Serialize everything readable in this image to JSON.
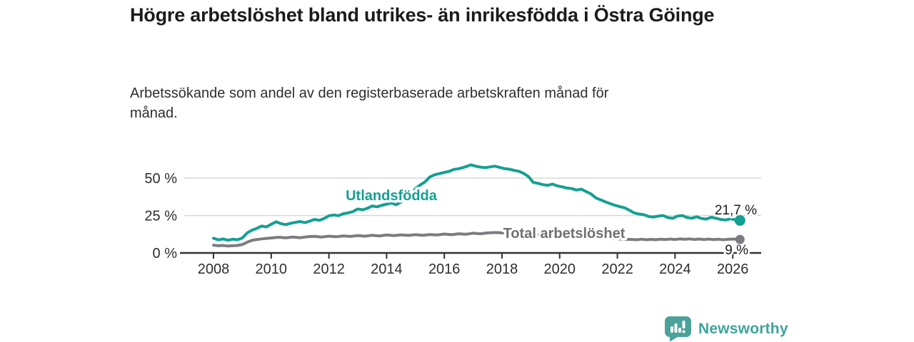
{
  "header": {
    "title": "Högre arbetslöshet bland utrikes- än inrikesfödda i Östra Göinge",
    "subtitle": "Arbetssökande som andel av den registerbaserade arbetskraften månad för månad."
  },
  "branding": {
    "logo_text": "Newsworthy",
    "logo_icon": "newsworthy-speech-bubble-bar-chart-icon",
    "brand_color": "#4aa29a"
  },
  "chart_data": {
    "type": "line",
    "title": "Högre arbetslöshet bland utrikes- än inrikesfödda i Östra Göinge",
    "subtitle": "Arbetssökande som andel av den registerbaserade arbetskraften månad för månad.",
    "grid": true,
    "legend_position": "inline-labels",
    "xlim": [
      2006.3,
      2027.3
    ],
    "ylim": [
      0,
      62
    ],
    "x_axis": {
      "ticks": [
        2008,
        2010,
        2012,
        2014,
        2016,
        2018,
        2020,
        2022,
        2024,
        2026
      ]
    },
    "y_axis": {
      "ticks": [
        {
          "value": 0,
          "label": "0 %"
        },
        {
          "value": 25,
          "label": "25 %"
        },
        {
          "value": 50,
          "label": "50 %"
        }
      ]
    },
    "series": [
      {
        "id": "utlandsfodda",
        "name": "Utlandsfödda",
        "color": "#14a091",
        "end_label": "21,7 %",
        "end_value": 21.7,
        "points": [
          [
            2008.0,
            9.8
          ],
          [
            2008.17,
            8.7
          ],
          [
            2008.33,
            9.4
          ],
          [
            2008.5,
            8.5
          ],
          [
            2008.67,
            9.2
          ],
          [
            2008.83,
            8.8
          ],
          [
            2009.0,
            10.0
          ],
          [
            2009.17,
            13.5
          ],
          [
            2009.33,
            15.2
          ],
          [
            2009.5,
            16.4
          ],
          [
            2009.67,
            18.0
          ],
          [
            2009.83,
            17.4
          ],
          [
            2010.0,
            19.2
          ],
          [
            2010.17,
            20.8
          ],
          [
            2010.33,
            19.6
          ],
          [
            2010.5,
            18.9
          ],
          [
            2010.67,
            19.8
          ],
          [
            2010.83,
            20.4
          ],
          [
            2011.0,
            21.0
          ],
          [
            2011.17,
            20.3
          ],
          [
            2011.33,
            21.2
          ],
          [
            2011.5,
            22.4
          ],
          [
            2011.67,
            21.8
          ],
          [
            2011.83,
            23.0
          ],
          [
            2012.0,
            24.8
          ],
          [
            2012.17,
            25.4
          ],
          [
            2012.33,
            24.9
          ],
          [
            2012.5,
            26.2
          ],
          [
            2012.67,
            26.8
          ],
          [
            2012.83,
            27.6
          ],
          [
            2013.0,
            29.4
          ],
          [
            2013.17,
            28.8
          ],
          [
            2013.33,
            29.8
          ],
          [
            2013.5,
            31.4
          ],
          [
            2013.67,
            30.8
          ],
          [
            2013.83,
            31.8
          ],
          [
            2014.0,
            32.6
          ],
          [
            2014.17,
            33.4
          ],
          [
            2014.33,
            32.2
          ],
          [
            2014.5,
            34.0
          ],
          [
            2014.67,
            36.5
          ],
          [
            2014.83,
            37.8
          ],
          [
            2015.0,
            43.0
          ],
          [
            2015.17,
            45.5
          ],
          [
            2015.33,
            47.5
          ],
          [
            2015.5,
            50.8
          ],
          [
            2015.67,
            52.3
          ],
          [
            2015.83,
            53.0
          ],
          [
            2016.0,
            53.8
          ],
          [
            2016.17,
            54.5
          ],
          [
            2016.33,
            55.8
          ],
          [
            2016.5,
            56.3
          ],
          [
            2016.67,
            57.2
          ],
          [
            2016.83,
            58.2
          ],
          [
            2016.92,
            58.9
          ],
          [
            2017.08,
            58.0
          ],
          [
            2017.25,
            57.4
          ],
          [
            2017.42,
            57.0
          ],
          [
            2017.58,
            57.5
          ],
          [
            2017.75,
            58.0
          ],
          [
            2017.92,
            57.2
          ],
          [
            2018.08,
            56.4
          ],
          [
            2018.25,
            56.0
          ],
          [
            2018.42,
            55.2
          ],
          [
            2018.58,
            54.6
          ],
          [
            2018.75,
            53.2
          ],
          [
            2018.92,
            51.0
          ],
          [
            2019.08,
            47.2
          ],
          [
            2019.25,
            46.5
          ],
          [
            2019.42,
            45.6
          ],
          [
            2019.58,
            45.2
          ],
          [
            2019.75,
            46.0
          ],
          [
            2019.92,
            44.8
          ],
          [
            2020.08,
            44.2
          ],
          [
            2020.25,
            43.4
          ],
          [
            2020.42,
            43.0
          ],
          [
            2020.58,
            42.0
          ],
          [
            2020.75,
            42.6
          ],
          [
            2020.92,
            41.0
          ],
          [
            2021.08,
            39.5
          ],
          [
            2021.25,
            36.8
          ],
          [
            2021.42,
            35.5
          ],
          [
            2021.58,
            34.2
          ],
          [
            2021.75,
            33.0
          ],
          [
            2021.92,
            31.8
          ],
          [
            2022.08,
            31.0
          ],
          [
            2022.25,
            30.2
          ],
          [
            2022.42,
            28.5
          ],
          [
            2022.58,
            26.8
          ],
          [
            2022.75,
            26.0
          ],
          [
            2022.92,
            25.5
          ],
          [
            2023.08,
            24.4
          ],
          [
            2023.25,
            24.0
          ],
          [
            2023.42,
            24.6
          ],
          [
            2023.58,
            25.0
          ],
          [
            2023.75,
            23.6
          ],
          [
            2023.92,
            23.2
          ],
          [
            2024.08,
            24.6
          ],
          [
            2024.25,
            25.0
          ],
          [
            2024.42,
            23.6
          ],
          [
            2024.58,
            23.2
          ],
          [
            2024.75,
            24.2
          ],
          [
            2024.92,
            23.0
          ],
          [
            2025.08,
            22.6
          ],
          [
            2025.25,
            23.8
          ],
          [
            2025.42,
            23.2
          ],
          [
            2025.58,
            22.4
          ],
          [
            2025.75,
            22.0
          ],
          [
            2025.92,
            22.8
          ],
          [
            2026.08,
            22.2
          ],
          [
            2026.25,
            21.7
          ]
        ]
      },
      {
        "id": "total",
        "name": "Total arbetslöshet",
        "color": "#7b7b80",
        "end_label": "9 %",
        "end_value": 9,
        "points": [
          [
            2008.0,
            5.2
          ],
          [
            2008.17,
            4.8
          ],
          [
            2008.33,
            5.0
          ],
          [
            2008.5,
            4.6
          ],
          [
            2008.67,
            4.8
          ],
          [
            2008.83,
            5.0
          ],
          [
            2009.0,
            5.6
          ],
          [
            2009.17,
            7.2
          ],
          [
            2009.33,
            8.4
          ],
          [
            2009.5,
            9.0
          ],
          [
            2009.67,
            9.4
          ],
          [
            2009.83,
            9.7
          ],
          [
            2010.0,
            10.0
          ],
          [
            2010.25,
            10.5
          ],
          [
            2010.5,
            10.1
          ],
          [
            2010.75,
            10.6
          ],
          [
            2011.0,
            10.2
          ],
          [
            2011.25,
            10.8
          ],
          [
            2011.5,
            11.1
          ],
          [
            2011.75,
            10.6
          ],
          [
            2012.0,
            11.2
          ],
          [
            2012.25,
            10.8
          ],
          [
            2012.5,
            11.4
          ],
          [
            2012.75,
            11.0
          ],
          [
            2013.0,
            11.6
          ],
          [
            2013.25,
            11.2
          ],
          [
            2013.5,
            11.8
          ],
          [
            2013.75,
            11.4
          ],
          [
            2014.0,
            12.0
          ],
          [
            2014.25,
            11.6
          ],
          [
            2014.5,
            12.1
          ],
          [
            2014.75,
            11.7
          ],
          [
            2015.0,
            12.2
          ],
          [
            2015.25,
            11.8
          ],
          [
            2015.5,
            12.3
          ],
          [
            2015.75,
            12.0
          ],
          [
            2016.0,
            12.6
          ],
          [
            2016.25,
            12.2
          ],
          [
            2016.5,
            12.8
          ],
          [
            2016.75,
            12.5
          ],
          [
            2017.0,
            13.2
          ],
          [
            2017.25,
            12.8
          ],
          [
            2017.5,
            13.4
          ],
          [
            2017.75,
            13.6
          ],
          [
            2018.0,
            13.5
          ],
          [
            2018.25,
            13.2
          ],
          [
            2018.5,
            13.0
          ],
          [
            2018.75,
            12.7
          ],
          [
            2019.0,
            12.4
          ],
          [
            2019.25,
            12.1
          ],
          [
            2019.5,
            11.9
          ],
          [
            2019.75,
            11.7
          ],
          [
            2020.0,
            11.5
          ],
          [
            2020.25,
            11.2
          ],
          [
            2020.5,
            11.0
          ],
          [
            2020.75,
            10.7
          ],
          [
            2021.0,
            10.4
          ],
          [
            2021.25,
            10.1
          ],
          [
            2021.5,
            9.9
          ],
          [
            2021.75,
            9.6
          ],
          [
            2022.0,
            9.4
          ],
          [
            2022.25,
            9.2
          ],
          [
            2022.5,
            9.0
          ],
          [
            2022.67,
            8.8
          ],
          [
            2022.83,
            9.2
          ],
          [
            2023.0,
            8.8
          ],
          [
            2023.17,
            9.1
          ],
          [
            2023.33,
            8.8
          ],
          [
            2023.5,
            9.2
          ],
          [
            2023.67,
            9.0
          ],
          [
            2023.83,
            9.3
          ],
          [
            2024.0,
            9.0
          ],
          [
            2024.17,
            9.4
          ],
          [
            2024.33,
            9.1
          ],
          [
            2024.5,
            9.4
          ],
          [
            2024.67,
            9.0
          ],
          [
            2024.83,
            9.3
          ],
          [
            2025.0,
            9.0
          ],
          [
            2025.17,
            9.3
          ],
          [
            2025.33,
            8.9
          ],
          [
            2025.5,
            9.2
          ],
          [
            2025.67,
            8.8
          ],
          [
            2025.83,
            9.1
          ],
          [
            2026.0,
            9.3
          ],
          [
            2026.25,
            9.0
          ]
        ]
      }
    ]
  }
}
